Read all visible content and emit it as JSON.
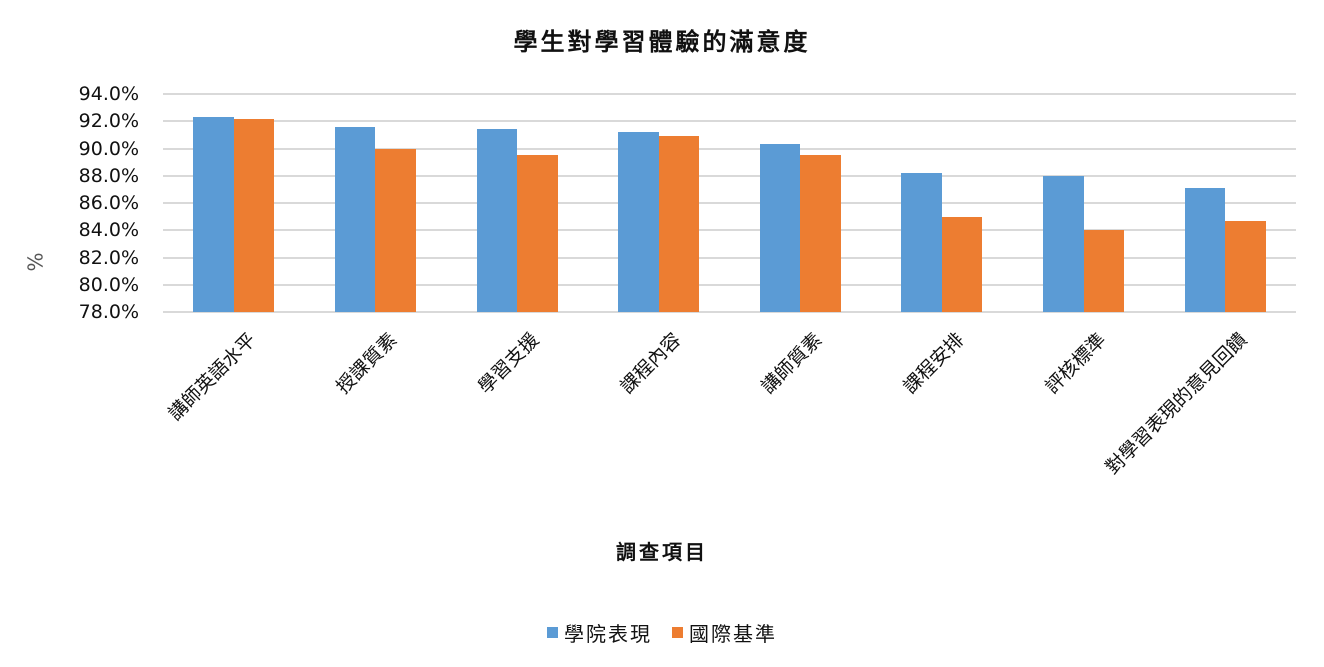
{
  "chart_data": {
    "type": "bar",
    "title": "學生對學習體驗的滿意度",
    "xlabel": "調查項目",
    "ylabel": "%",
    "ylim": [
      78.0,
      94.0
    ],
    "yticks": [
      "78.0%",
      "80.0%",
      "82.0%",
      "84.0%",
      "86.0%",
      "88.0%",
      "90.0%",
      "92.0%",
      "94.0%"
    ],
    "grid": true,
    "legend_position": "bottom",
    "categories": [
      "講師英語水平",
      "授課質素",
      "學習支援",
      "課程內容",
      "講師質素",
      "課程安排",
      "評核標準",
      "對學習表現的意見回饋"
    ],
    "series": [
      {
        "name": "學院表現",
        "color": "#5b9bd5",
        "values": [
          92.3,
          91.6,
          91.4,
          91.2,
          90.3,
          88.2,
          88.0,
          87.1
        ]
      },
      {
        "name": "國際基準",
        "color": "#ed7d31",
        "values": [
          92.2,
          90.0,
          89.5,
          90.9,
          89.5,
          85.0,
          84.0,
          84.7
        ]
      }
    ]
  }
}
